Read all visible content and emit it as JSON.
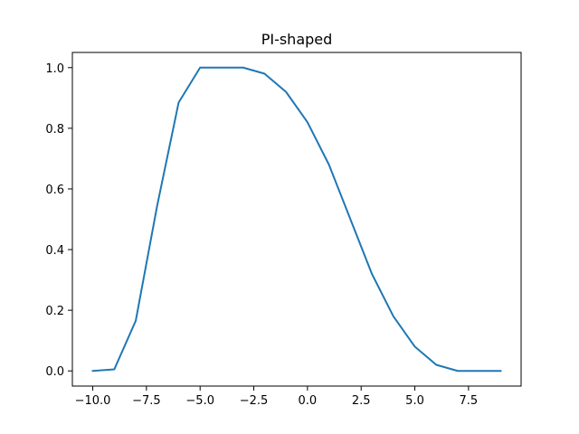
{
  "chart_data": {
    "type": "line",
    "title": "PI-shaped",
    "xlabel": "",
    "ylabel": "",
    "xlim": [
      -10.95,
      9.95
    ],
    "ylim": [
      -0.05,
      1.05
    ],
    "grid": false,
    "x_ticks": [
      -10.0,
      -7.5,
      -5.0,
      -2.5,
      0.0,
      2.5,
      5.0,
      7.5
    ],
    "x_tick_labels": [
      "−10.0",
      "−7.5",
      "−5.0",
      "−2.5",
      "0.0",
      "2.5",
      "5.0",
      "7.5"
    ],
    "y_ticks": [
      0.0,
      0.2,
      0.4,
      0.6,
      0.8,
      1.0
    ],
    "y_tick_labels": [
      "0.0",
      "0.2",
      "0.4",
      "0.6",
      "0.8",
      "1.0"
    ],
    "series": [
      {
        "color": "#1f77b4",
        "x": [
          -10,
          -9,
          -8,
          -7,
          -6,
          -5,
          -4,
          -3,
          -2,
          -1,
          0,
          1,
          2,
          3,
          4,
          5,
          6,
          7,
          8,
          9
        ],
        "y": [
          0.0,
          0.005,
          0.165,
          0.545,
          0.885,
          1.0,
          1.0,
          1.0,
          0.98,
          0.92,
          0.82,
          0.68,
          0.5,
          0.32,
          0.18,
          0.08,
          0.02,
          0.0,
          0.0,
          0.0
        ]
      }
    ]
  }
}
